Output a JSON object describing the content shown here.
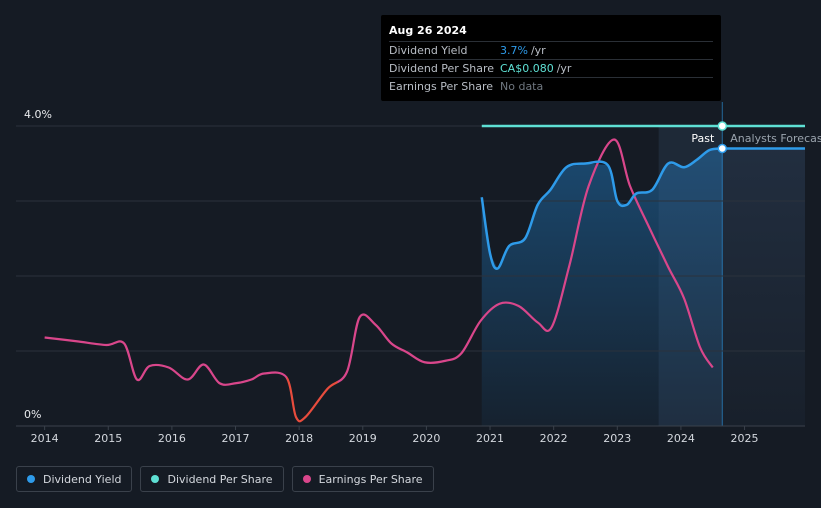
{
  "tooltip": {
    "date": "Aug 26 2024",
    "rows": [
      {
        "label": "Dividend Yield",
        "value": "3.7%",
        "unit": "/yr"
      },
      {
        "label": "Dividend Per Share",
        "value": "CA$0.080",
        "unit": "/yr"
      },
      {
        "label": "Earnings Per Share",
        "value": "No data",
        "unit": ""
      }
    ]
  },
  "past_label": "Past",
  "forecast_label": "Analysts Forecasts",
  "legend": [
    {
      "label": "Dividend Yield",
      "color": "#2e9bea"
    },
    {
      "label": "Dividend Per Share",
      "color": "#5ee0d4"
    },
    {
      "label": "Earnings Per Share",
      "color": "#d9468b"
    }
  ],
  "chart_data": {
    "type": "line",
    "x_ticks": [
      "2014",
      "2015",
      "2016",
      "2017",
      "2018",
      "2019",
      "2020",
      "2021",
      "2022",
      "2023",
      "2024",
      "2025"
    ],
    "y_ticks": [
      "4.0%",
      "0%"
    ],
    "xlim": [
      2013.55,
      2025.95
    ],
    "ylim": [
      0,
      4.0
    ],
    "grid": true,
    "past_forecast_boundary": 2024.65,
    "colors": {
      "dividend_yield": "#2e9bea",
      "dividend_per_share": "#5ee0d4",
      "eps_positive": "#d9468b",
      "eps_negative": "#e84c3d"
    },
    "series": [
      {
        "name": "Dividend Yield",
        "points": [
          [
            2020.87,
            3.05
          ],
          [
            2021.0,
            2.3
          ],
          [
            2021.12,
            2.1
          ],
          [
            2021.3,
            2.4
          ],
          [
            2021.55,
            2.5
          ],
          [
            2021.75,
            2.95
          ],
          [
            2021.95,
            3.15
          ],
          [
            2022.2,
            3.45
          ],
          [
            2022.5,
            3.5
          ],
          [
            2022.85,
            3.48
          ],
          [
            2023.0,
            3.0
          ],
          [
            2023.15,
            2.95
          ],
          [
            2023.3,
            3.1
          ],
          [
            2023.55,
            3.15
          ],
          [
            2023.8,
            3.5
          ],
          [
            2024.05,
            3.45
          ],
          [
            2024.25,
            3.55
          ],
          [
            2024.45,
            3.68
          ],
          [
            2024.65,
            3.7
          ],
          [
            2025.95,
            3.7
          ]
        ]
      },
      {
        "name": "Dividend Per Share",
        "points": [
          [
            2020.87,
            4.0
          ],
          [
            2025.95,
            4.0
          ]
        ]
      },
      {
        "name": "Earnings Per Share",
        "points": [
          [
            2014.0,
            1.18
          ],
          [
            2014.5,
            1.13
          ],
          [
            2014.97,
            1.08
          ],
          [
            2015.25,
            1.1
          ],
          [
            2015.45,
            0.62
          ],
          [
            2015.65,
            0.8
          ],
          [
            2015.95,
            0.78
          ],
          [
            2016.25,
            0.62
          ],
          [
            2016.5,
            0.82
          ],
          [
            2016.75,
            0.57
          ],
          [
            2017.0,
            0.57
          ],
          [
            2017.25,
            0.62
          ],
          [
            2017.45,
            0.7
          ],
          [
            2017.8,
            0.65
          ],
          [
            2017.95,
            0.12
          ],
          [
            2018.1,
            0.12
          ],
          [
            2018.45,
            0.5
          ],
          [
            2018.75,
            0.72
          ],
          [
            2018.95,
            1.45
          ],
          [
            2019.2,
            1.35
          ],
          [
            2019.45,
            1.1
          ],
          [
            2019.7,
            0.98
          ],
          [
            2019.97,
            0.85
          ],
          [
            2020.3,
            0.87
          ],
          [
            2020.55,
            0.97
          ],
          [
            2020.85,
            1.4
          ],
          [
            2021.15,
            1.63
          ],
          [
            2021.45,
            1.6
          ],
          [
            2021.75,
            1.38
          ],
          [
            2021.97,
            1.32
          ],
          [
            2022.25,
            2.15
          ],
          [
            2022.55,
            3.2
          ],
          [
            2022.95,
            3.82
          ],
          [
            2023.2,
            3.2
          ],
          [
            2023.5,
            2.65
          ],
          [
            2023.8,
            2.12
          ],
          [
            2024.05,
            1.7
          ],
          [
            2024.3,
            1.05
          ],
          [
            2024.5,
            0.78
          ]
        ]
      }
    ]
  }
}
